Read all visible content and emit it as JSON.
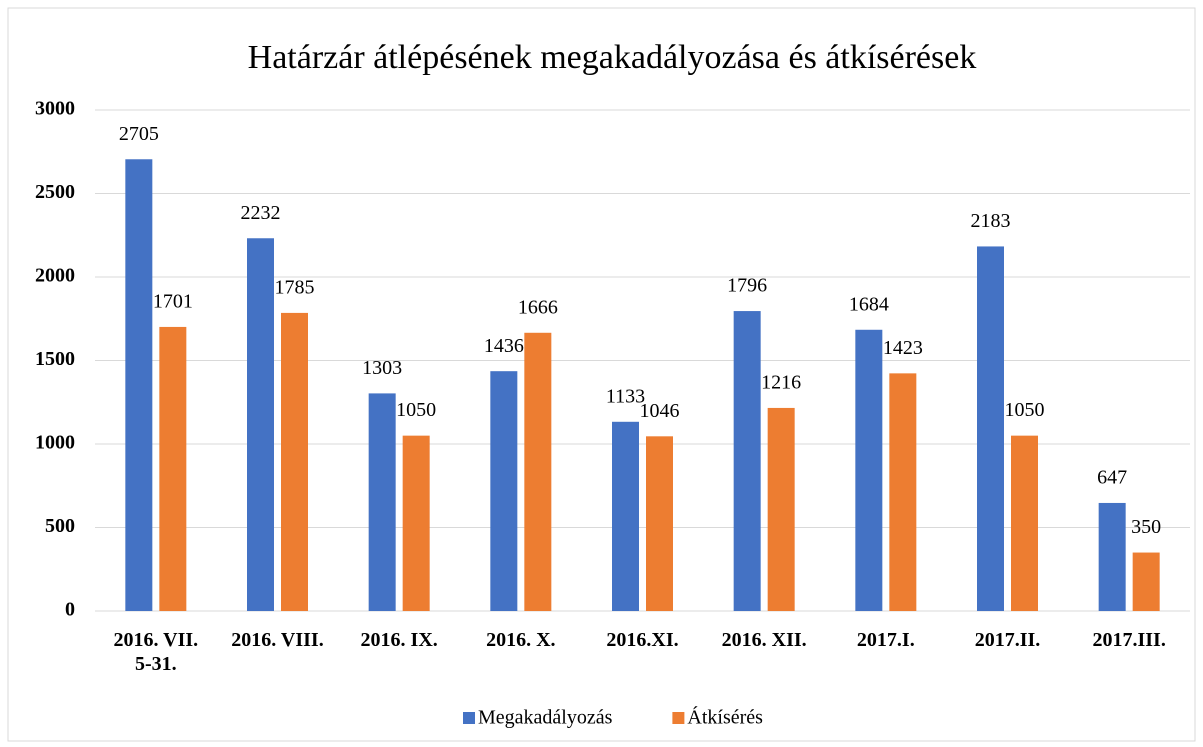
{
  "chart_data": {
    "type": "bar",
    "title": "Határzár átlépésének megakadályozása és átkísérések",
    "categories": [
      "2016. VII.\n5-31.",
      "2016. VIII.",
      "2016. IX.",
      "2016. X.",
      "2016.XI.",
      "2016. XII.",
      "2017.I.",
      "2017.II.",
      "2017.III."
    ],
    "series": [
      {
        "name": "Megakadályozás",
        "color": "#4472c4",
        "values": [
          2705,
          2232,
          1303,
          1436,
          1133,
          1796,
          1684,
          2183,
          647
        ]
      },
      {
        "name": "Átkísérés",
        "color": "#ed7d31",
        "values": [
          1701,
          1785,
          1050,
          1666,
          1046,
          1216,
          1423,
          1050,
          350
        ]
      }
    ],
    "ylim": [
      0,
      3000
    ],
    "yticks": [
      0,
      500,
      1000,
      1500,
      2000,
      2500,
      3000
    ],
    "grid": true,
    "legend": "bottom"
  }
}
